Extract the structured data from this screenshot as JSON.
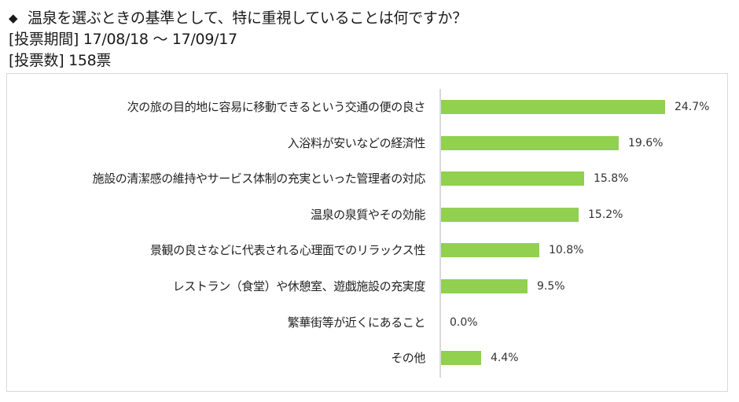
{
  "header": {
    "bullet": "◆",
    "question": "温泉を選ぶときの基準として、特に重視していることは何ですか？",
    "period_line": "[投票期間] 17/08/18 ～ 17/09/17",
    "votes_line": "[投票数] 158票"
  },
  "style": {
    "bar_color": "#92d050",
    "axis_color": "#d9d9d9",
    "frame_color": "#d9d9d9"
  },
  "chart_data": {
    "type": "bar",
    "orientation": "horizontal",
    "title": "温泉を選ぶときの基準として、特に重視していることは何ですか？",
    "subtitle": "[投票期間] 17/08/18 ～ 17/09/17 / [投票数] 158票",
    "xlabel": "",
    "ylabel": "",
    "grid": false,
    "legend": null,
    "unit": "%",
    "categories": [
      "次の旅の目的地に容易に移動できるという交通の便の良さ",
      "入浴料が安いなどの経済性",
      "施設の清潔感の維持やサービス体制の充実といった管理者の対応",
      "温泉の泉質やその効能",
      "景観の良さなどに代表される心理面でのリラックス性",
      "レストラン（食堂）や休憩室、遊戯施設の充実度",
      "繁華街等が近くにあること",
      "その他"
    ],
    "values": [
      24.7,
      19.6,
      15.8,
      15.2,
      10.8,
      9.5,
      0.0,
      4.4
    ],
    "value_labels": [
      "24.7%",
      "19.6%",
      "15.8%",
      "15.2%",
      "10.8%",
      "9.5%",
      "0.0%",
      "4.4%"
    ]
  }
}
